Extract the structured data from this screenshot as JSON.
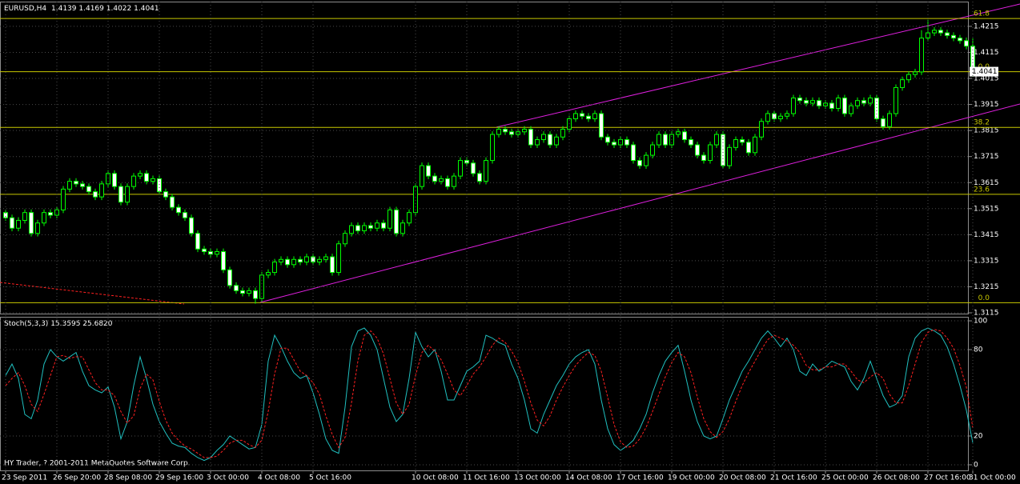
{
  "chart_data": [
    {
      "type": "candlestick",
      "title": "EURUSD,H4",
      "categories": [
        "23 Sep 2011",
        null,
        null,
        null,
        null,
        null,
        null,
        null,
        "26 Sep 20:00",
        null,
        null,
        null,
        null,
        null,
        null,
        null,
        "28 Sep 08:00",
        null,
        null,
        null,
        null,
        null,
        null,
        null,
        "29 Sep 16:00",
        null,
        null,
        null,
        null,
        null,
        null,
        null,
        "3 Oct 00:00",
        null,
        null,
        null,
        null,
        null,
        null,
        null,
        "4 Oct 08:00",
        null,
        null,
        null,
        null,
        null,
        null,
        null,
        "5 Oct 16:00",
        null,
        null,
        null,
        null,
        null,
        null,
        null,
        null,
        null,
        null,
        null,
        null,
        null,
        null,
        null,
        "10 Oct 08:00",
        null,
        null,
        null,
        null,
        null,
        null,
        null,
        "11 Oct 16:00",
        null,
        null,
        null,
        null,
        null,
        null,
        null,
        "13 Oct 00:00",
        null,
        null,
        null,
        null,
        null,
        null,
        null,
        "14 Oct 08:00",
        null,
        null,
        null,
        null,
        null,
        null,
        null,
        "17 Oct 16:00",
        null,
        null,
        null,
        null,
        null,
        null,
        null,
        "19 Oct 00:00",
        null,
        null,
        null,
        null,
        null,
        null,
        null,
        "20 Oct 08:00",
        null,
        null,
        null,
        null,
        null,
        null,
        null,
        "21 Oct 16:00",
        null,
        null,
        null,
        null,
        null,
        null,
        null,
        "25 Oct 00:00",
        null,
        null,
        null,
        null,
        null,
        null,
        null,
        "26 Oct 08:00",
        null,
        null,
        null,
        null,
        null,
        null,
        null,
        "27 Oct 16:00",
        null,
        null,
        null,
        null,
        null,
        null,
        "31 Oct 00:00"
      ],
      "open": [
        1.35,
        1.348,
        1.344,
        1.347,
        1.35,
        1.342,
        1.346,
        1.35,
        1.349,
        1.351,
        1.359,
        1.362,
        1.361,
        1.36,
        1.358,
        1.356,
        1.361,
        1.365,
        1.36,
        1.354,
        1.36,
        1.364,
        1.365,
        1.362,
        1.363,
        1.358,
        1.356,
        1.352,
        1.35,
        1.348,
        1.342,
        1.336,
        1.335,
        1.334,
        1.335,
        1.328,
        1.322,
        1.32,
        1.319,
        1.32,
        1.317,
        1.326,
        1.327,
        1.331,
        1.332,
        1.33,
        1.332,
        1.331,
        1.333,
        1.331,
        1.332,
        1.333,
        1.327,
        1.338,
        1.342,
        1.345,
        1.343,
        1.345,
        1.344,
        1.346,
        1.344,
        1.351,
        1.342,
        1.346,
        1.35,
        1.36,
        1.368,
        1.364,
        1.362,
        1.363,
        1.36,
        1.364,
        1.37,
        1.369,
        1.365,
        1.362,
        1.37,
        1.38,
        1.382,
        1.381,
        1.38,
        1.381,
        1.382,
        1.376,
        1.378,
        1.38,
        1.376,
        1.379,
        1.382,
        1.386,
        1.388,
        1.387,
        1.386,
        1.388,
        1.379,
        1.377,
        1.376,
        1.378,
        1.376,
        1.37,
        1.368,
        1.372,
        1.376,
        1.38,
        1.376,
        1.38,
        1.381,
        1.378,
        1.376,
        1.372,
        1.37,
        1.376,
        1.38,
        1.368,
        1.375,
        1.378,
        1.377,
        1.373,
        1.379,
        1.385,
        1.388,
        1.386,
        1.387,
        1.388,
        1.394,
        1.393,
        1.392,
        1.393,
        1.391,
        1.392,
        1.39,
        1.394,
        1.388,
        1.391,
        1.393,
        1.392,
        1.394,
        1.386,
        1.383,
        1.388,
        1.398,
        1.401,
        1.403,
        1.404,
        1.417,
        1.419,
        1.42,
        1.419,
        1.418,
        1.417,
        1.416,
        1.4139
      ],
      "high": [
        1.3512,
        1.3492,
        1.3482,
        1.3512,
        1.3512,
        1.3472,
        1.3512,
        1.3512,
        1.3522,
        1.3602,
        1.3632,
        1.3632,
        1.3622,
        1.3612,
        1.3592,
        1.3622,
        1.3662,
        1.3662,
        1.3612,
        1.3612,
        1.3652,
        1.3662,
        1.3662,
        1.3642,
        1.3642,
        1.3592,
        1.3572,
        1.3532,
        1.3512,
        1.3492,
        1.3432,
        1.3372,
        1.3362,
        1.3362,
        1.3362,
        1.3292,
        1.3232,
        1.3212,
        1.3212,
        1.3212,
        1.3272,
        1.3282,
        1.3322,
        1.3332,
        1.3332,
        1.3332,
        1.3332,
        1.3342,
        1.3342,
        1.3332,
        1.3342,
        1.3342,
        1.3392,
        1.3432,
        1.3462,
        1.3462,
        1.3462,
        1.3462,
        1.3472,
        1.3472,
        1.3522,
        1.3522,
        1.3472,
        1.3512,
        1.3612,
        1.3692,
        1.3692,
        1.3652,
        1.3642,
        1.3642,
        1.3652,
        1.3712,
        1.3712,
        1.3702,
        1.3662,
        1.3712,
        1.3812,
        1.3832,
        1.3832,
        1.3822,
        1.3822,
        1.3832,
        1.3832,
        1.3792,
        1.3812,
        1.3812,
        1.3802,
        1.3832,
        1.3872,
        1.3892,
        1.3892,
        1.3882,
        1.3892,
        1.3892,
        1.3802,
        1.3782,
        1.3792,
        1.3792,
        1.3772,
        1.3712,
        1.3732,
        1.3772,
        1.3812,
        1.3812,
        1.3812,
        1.3822,
        1.3822,
        1.3792,
        1.3772,
        1.3732,
        1.3772,
        1.3812,
        1.3812,
        1.3762,
        1.3792,
        1.3792,
        1.3782,
        1.3802,
        1.3862,
        1.3892,
        1.3892,
        1.3882,
        1.3892,
        1.3952,
        1.3952,
        1.3942,
        1.3942,
        1.3942,
        1.3932,
        1.3932,
        1.3952,
        1.3952,
        1.3922,
        1.3942,
        1.3942,
        1.3952,
        1.3952,
        1.3872,
        1.3892,
        1.3992,
        1.4022,
        1.4042,
        1.4052,
        1.42,
        1.424,
        1.4212,
        1.4212,
        1.4202,
        1.4192,
        1.4182,
        1.4172,
        1.4169
      ],
      "low": [
        1.3468,
        1.3428,
        1.3428,
        1.3458,
        1.3408,
        1.3408,
        1.3448,
        1.3478,
        1.3478,
        1.3498,
        1.3578,
        1.3598,
        1.3588,
        1.3568,
        1.3548,
        1.3548,
        1.3598,
        1.3588,
        1.3528,
        1.3528,
        1.3588,
        1.3628,
        1.3608,
        1.3608,
        1.3568,
        1.3548,
        1.3508,
        1.3488,
        1.3468,
        1.3408,
        1.3348,
        1.3338,
        1.3328,
        1.3328,
        1.3268,
        1.3208,
        1.3188,
        1.3178,
        1.3178,
        1.315,
        1.3158,
        1.3248,
        1.3258,
        1.3298,
        1.3288,
        1.3288,
        1.3298,
        1.3298,
        1.3298,
        1.3298,
        1.3308,
        1.3258,
        1.3258,
        1.3368,
        1.3408,
        1.3418,
        1.3418,
        1.3428,
        1.3428,
        1.3428,
        1.3428,
        1.3408,
        1.3408,
        1.3448,
        1.3488,
        1.3588,
        1.3628,
        1.3608,
        1.3608,
        1.3588,
        1.3588,
        1.3628,
        1.3678,
        1.3638,
        1.3608,
        1.3608,
        1.3688,
        1.3788,
        1.3798,
        1.3788,
        1.3788,
        1.3798,
        1.3748,
        1.3748,
        1.3768,
        1.3748,
        1.3748,
        1.3778,
        1.3808,
        1.3848,
        1.3858,
        1.3848,
        1.3848,
        1.3778,
        1.3758,
        1.3748,
        1.3748,
        1.3748,
        1.3688,
        1.3668,
        1.3668,
        1.3708,
        1.3748,
        1.3748,
        1.3748,
        1.3788,
        1.3768,
        1.3748,
        1.3708,
        1.3688,
        1.3688,
        1.3748,
        1.3668,
        1.3668,
        1.3738,
        1.3758,
        1.3718,
        1.3718,
        1.3778,
        1.3838,
        1.3848,
        1.3848,
        1.3858,
        1.3868,
        1.3918,
        1.3908,
        1.3908,
        1.3898,
        1.3898,
        1.3888,
        1.3888,
        1.3868,
        1.3868,
        1.3898,
        1.3908,
        1.3908,
        1.3848,
        1.3818,
        1.3818,
        1.3868,
        1.3968,
        1.3998,
        1.4018,
        1.4028,
        1.4158,
        1.4178,
        1.4178,
        1.4168,
        1.4158,
        1.4148,
        1.4127,
        1.4022
      ],
      "close": [
        1.348,
        1.344,
        1.347,
        1.35,
        1.342,
        1.346,
        1.35,
        1.349,
        1.351,
        1.359,
        1.362,
        1.361,
        1.36,
        1.358,
        1.356,
        1.361,
        1.365,
        1.36,
        1.354,
        1.36,
        1.364,
        1.365,
        1.362,
        1.363,
        1.358,
        1.356,
        1.352,
        1.35,
        1.348,
        1.342,
        1.336,
        1.335,
        1.334,
        1.335,
        1.328,
        1.322,
        1.32,
        1.319,
        1.32,
        1.317,
        1.326,
        1.327,
        1.331,
        1.332,
        1.33,
        1.332,
        1.331,
        1.333,
        1.331,
        1.332,
        1.333,
        1.327,
        1.338,
        1.342,
        1.345,
        1.343,
        1.345,
        1.344,
        1.346,
        1.344,
        1.351,
        1.342,
        1.346,
        1.35,
        1.36,
        1.368,
        1.364,
        1.362,
        1.363,
        1.36,
        1.364,
        1.37,
        1.369,
        1.365,
        1.362,
        1.37,
        1.38,
        1.382,
        1.381,
        1.38,
        1.381,
        1.382,
        1.376,
        1.378,
        1.38,
        1.376,
        1.379,
        1.382,
        1.386,
        1.388,
        1.387,
        1.386,
        1.388,
        1.379,
        1.377,
        1.376,
        1.378,
        1.376,
        1.37,
        1.368,
        1.372,
        1.376,
        1.38,
        1.376,
        1.38,
        1.381,
        1.378,
        1.376,
        1.372,
        1.37,
        1.376,
        1.38,
        1.368,
        1.375,
        1.378,
        1.377,
        1.373,
        1.379,
        1.385,
        1.388,
        1.386,
        1.387,
        1.388,
        1.394,
        1.393,
        1.392,
        1.393,
        1.391,
        1.392,
        1.39,
        1.394,
        1.388,
        1.391,
        1.393,
        1.392,
        1.394,
        1.386,
        1.383,
        1.388,
        1.398,
        1.401,
        1.403,
        1.404,
        1.417,
        1.419,
        1.42,
        1.419,
        1.418,
        1.417,
        1.416,
        1.4139,
        1.4041
      ],
      "color": "#00ff00",
      "up_color": "#000000",
      "down_color": "#ffffff",
      "ylim": [
        1.3112,
        1.431
      ],
      "yticks": [
        1.3115,
        1.3215,
        1.3315,
        1.3415,
        1.3515,
        1.3615,
        1.3715,
        1.3815,
        1.3915,
        1.4015,
        1.4115,
        1.4215
      ],
      "grid": true,
      "levels": [
        {
          "label": "61.8",
          "price": 1.4245
        },
        {
          "label": "0.0",
          "price": 1.4041
        },
        {
          "label": "38.2",
          "price": 1.3827
        },
        {
          "label": "23.6",
          "price": 1.357
        },
        {
          "label": "0.0",
          "price": 1.3154
        }
      ],
      "level_color": "#c8c800"
    },
    {
      "type": "line",
      "title": "Stoch(5,3,3)",
      "header_values": [
        "15.3595",
        "25.6820"
      ],
      "series": [
        {
          "color": "#20c0c0",
          "style": "solid",
          "values": [
            62,
            70,
            60,
            35,
            32,
            45,
            70,
            80,
            75,
            72,
            75,
            78,
            65,
            55,
            52,
            50,
            54,
            40,
            18,
            30,
            55,
            75,
            60,
            42,
            30,
            22,
            15,
            13,
            12,
            8,
            5,
            3,
            5,
            10,
            14,
            20,
            17,
            14,
            11,
            12,
            28,
            72,
            90,
            82,
            72,
            64,
            60,
            62,
            50,
            35,
            18,
            10,
            8,
            40,
            82,
            93,
            95,
            90,
            80,
            60,
            40,
            30,
            35,
            60,
            92,
            82,
            75,
            80,
            65,
            45,
            45,
            55,
            65,
            68,
            72,
            90,
            88,
            85,
            83,
            70,
            60,
            45,
            25,
            22,
            35,
            45,
            55,
            62,
            70,
            75,
            78,
            80,
            70,
            45,
            25,
            14,
            10,
            13,
            17,
            25,
            35,
            50,
            62,
            72,
            78,
            83,
            65,
            45,
            30,
            20,
            18,
            20,
            32,
            45,
            55,
            65,
            72,
            80,
            88,
            93,
            88,
            82,
            88,
            80,
            65,
            62,
            70,
            65,
            68,
            72,
            70,
            68,
            58,
            52,
            60,
            72,
            60,
            48,
            40,
            42,
            48,
            75,
            88,
            93,
            95,
            93,
            90,
            82,
            70,
            55,
            38,
            15.3595
          ]
        },
        {
          "color": "#ff2020",
          "style": "dashed",
          "values": [
            55,
            60,
            64,
            55,
            42,
            37,
            49,
            62,
            75,
            76,
            74,
            75,
            75,
            66,
            57,
            52,
            52,
            48,
            37,
            29,
            34,
            53,
            63,
            59,
            44,
            31,
            22,
            17,
            13,
            11,
            8,
            5,
            5,
            6,
            10,
            15,
            17,
            17,
            14,
            12,
            17,
            37,
            63,
            81,
            81,
            73,
            65,
            62,
            57,
            49,
            34,
            21,
            12,
            19,
            43,
            72,
            90,
            93,
            88,
            77,
            60,
            43,
            35,
            42,
            62,
            78,
            83,
            79,
            73,
            63,
            52,
            48,
            55,
            63,
            68,
            75,
            83,
            88,
            85,
            79,
            71,
            58,
            43,
            31,
            27,
            34,
            45,
            54,
            62,
            69,
            74,
            78,
            76,
            65,
            47,
            28,
            16,
            12,
            13,
            18,
            26,
            37,
            49,
            61,
            71,
            78,
            75,
            64,
            47,
            32,
            23,
            19,
            23,
            32,
            44,
            55,
            64,
            72,
            80,
            87,
            90,
            88,
            86,
            83,
            78,
            69,
            66,
            66,
            68,
            68,
            70,
            70,
            65,
            59,
            57,
            61,
            64,
            60,
            49,
            43,
            43,
            55,
            70,
            85,
            92,
            94,
            93,
            88,
            81,
            69,
            54,
            25.682
          ]
        }
      ],
      "ylim": [
        -3.9,
        102.8
      ],
      "yticks": [
        0,
        20,
        80,
        100
      ],
      "grid": true
    }
  ],
  "footer": "HY Trader, ? 2001-2011 MetaQuotes Software Corp."
}
